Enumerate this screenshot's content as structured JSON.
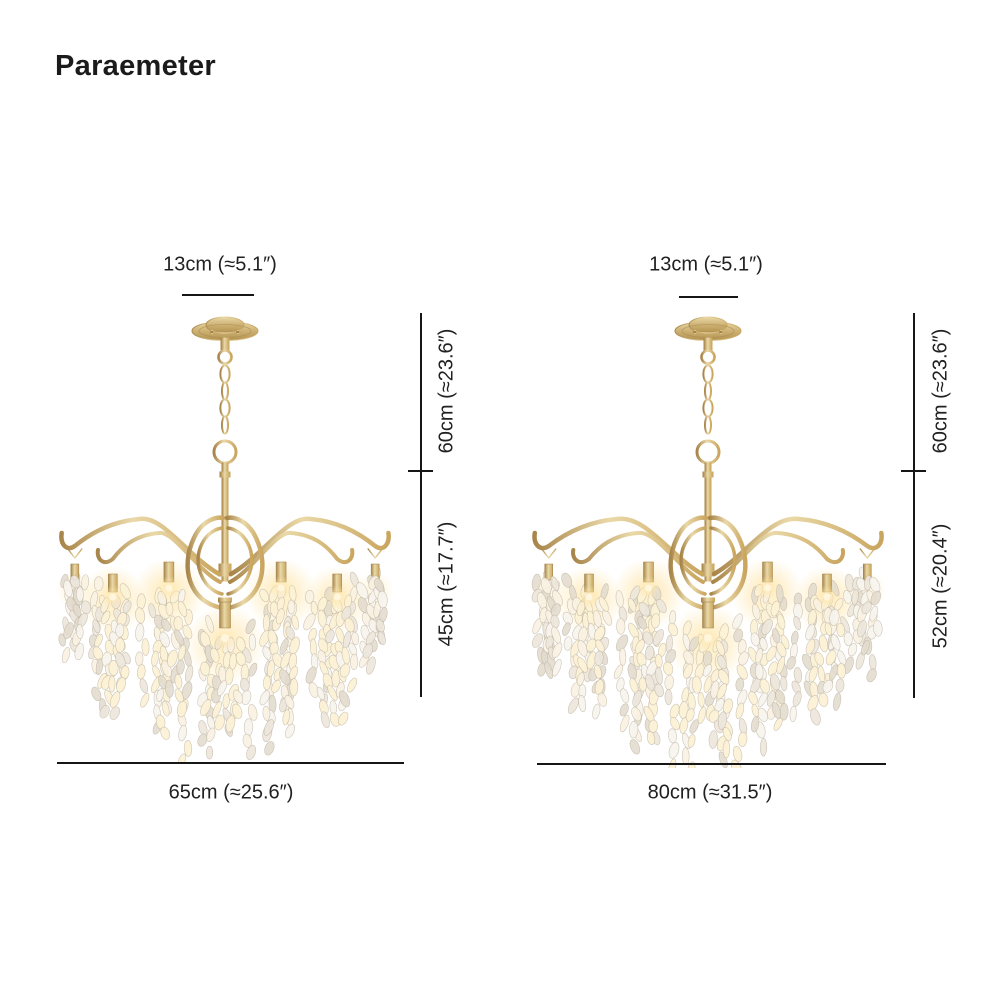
{
  "title": "Paraemeter",
  "colors": {
    "text": "#212121",
    "dimension_line": "#161616",
    "gold": "#c9a55e",
    "gold_dark": "#a8854a",
    "gold_light": "#ead9a8",
    "crystal_white": "#f7f4ee",
    "crystal_shade": "#e2dbcd",
    "glow_warm": "#ffe6ab",
    "background": "#ffffff"
  },
  "figures": [
    {
      "name": "chandelier-65cm",
      "top_width_label": "13cm (≈5.1″)",
      "upper_height_label": "60cm (≈23.6″)",
      "lower_height_label": "45cm (≈17.7″)",
      "bottom_width_label": "65cm (≈25.6″)"
    },
    {
      "name": "chandelier-80cm",
      "top_width_label": "13cm (≈5.1″)",
      "upper_height_label": "60cm (≈23.6″)",
      "lower_height_label": "52cm (≈20.4″)",
      "bottom_width_label": "80cm (≈31.5″)"
    }
  ]
}
